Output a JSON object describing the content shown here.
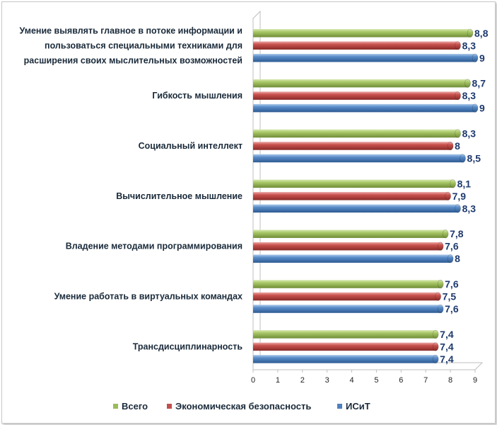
{
  "chart_data": {
    "type": "bar",
    "orientation": "horizontal",
    "categories": [
      [
        "Умение выявлять главное в потоке информации и",
        "пользоваться специальными техниками для",
        "расширения своих мыслительных возможностей"
      ],
      [
        "Гибкость мышления"
      ],
      [
        "Социальный интеллект"
      ],
      [
        "Вычислительное мышление"
      ],
      [
        "Владение методами программирования"
      ],
      [
        "Умение работать в виртуальных командах"
      ],
      [
        "Трансдисциплинарность"
      ]
    ],
    "series": [
      {
        "name": "Всего",
        "color": "#9bbb59",
        "values": [
          8.8,
          8.7,
          8.3,
          8.1,
          7.8,
          7.6,
          7.4
        ],
        "labels": [
          "8,8",
          "8,7",
          "8,3",
          "8,1",
          "7,8",
          "7,6",
          "7,4"
        ]
      },
      {
        "name": "Экономическая безопасность",
        "color": "#c0504d",
        "values": [
          8.3,
          8.3,
          8,
          7.9,
          7.6,
          7.5,
          7.4
        ],
        "labels": [
          "8,3",
          "8,3",
          "8",
          "7,9",
          "7,6",
          "7,5",
          "7,4"
        ]
      },
      {
        "name": "ИСиТ",
        "color": "#4f81bd",
        "values": [
          9,
          9,
          8.5,
          8.3,
          8,
          7.6,
          7.4
        ],
        "labels": [
          "9",
          "9",
          "8,5",
          "8,3",
          "8",
          "7,6",
          "7,4"
        ]
      }
    ],
    "xlim": [
      0,
      9
    ],
    "xticks": [
      "0",
      "1",
      "2",
      "3",
      "4",
      "5",
      "6",
      "7",
      "8",
      "9"
    ],
    "grid": false,
    "legend_position": "bottom"
  }
}
